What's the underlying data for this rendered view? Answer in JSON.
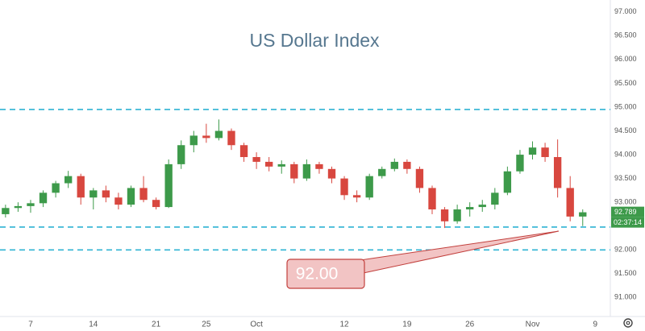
{
  "chart_data": {
    "type": "candlestick",
    "title": "US Dollar Index",
    "x": [
      -2,
      -1,
      0,
      1,
      2,
      3,
      4,
      5,
      6,
      7,
      8,
      9,
      10,
      11,
      12,
      13,
      14,
      15,
      16,
      17,
      18,
      19,
      20,
      21,
      22,
      23,
      24,
      25,
      26,
      27,
      28,
      29,
      30,
      31,
      32,
      33,
      34,
      35,
      36,
      37,
      38,
      39,
      40,
      41,
      42,
      43,
      44
    ],
    "open": [
      92.75,
      92.88,
      92.92,
      92.98,
      93.2,
      93.4,
      93.55,
      93.1,
      93.25,
      93.1,
      92.95,
      93.3,
      93.05,
      92.9,
      93.8,
      94.2,
      94.4,
      94.35,
      94.5,
      94.2,
      93.95,
      93.85,
      93.75,
      93.8,
      93.5,
      93.8,
      93.7,
      93.5,
      93.15,
      93.1,
      93.55,
      93.7,
      93.85,
      93.7,
      93.3,
      92.85,
      92.6,
      92.85,
      92.9,
      92.95,
      93.2,
      93.65,
      94.0,
      94.15,
      93.95,
      93.3,
      92.7
    ],
    "high": [
      92.95,
      93.0,
      93.05,
      93.25,
      93.45,
      93.66,
      93.6,
      93.3,
      93.35,
      93.2,
      93.35,
      93.55,
      93.1,
      93.9,
      94.3,
      94.5,
      94.65,
      94.74,
      94.55,
      94.25,
      94.05,
      93.95,
      93.88,
      93.85,
      93.9,
      93.85,
      93.75,
      93.55,
      93.25,
      93.6,
      93.75,
      93.92,
      93.9,
      93.75,
      93.35,
      92.9,
      92.95,
      93.0,
      93.05,
      93.3,
      93.75,
      94.1,
      94.28,
      94.25,
      94.32,
      93.55,
      92.85
    ],
    "low": [
      92.68,
      92.8,
      92.78,
      92.9,
      93.1,
      93.3,
      92.95,
      92.85,
      93.0,
      92.85,
      92.9,
      93.0,
      92.85,
      92.88,
      93.7,
      94.05,
      94.25,
      94.3,
      94.1,
      93.85,
      93.7,
      93.65,
      93.6,
      93.4,
      93.45,
      93.6,
      93.4,
      93.05,
      93.0,
      93.05,
      93.5,
      93.65,
      93.6,
      93.2,
      92.75,
      92.46,
      92.55,
      92.7,
      92.8,
      92.85,
      93.15,
      93.6,
      93.9,
      93.85,
      93.1,
      92.6,
      92.5
    ],
    "close": [
      92.88,
      92.92,
      92.98,
      93.2,
      93.4,
      93.55,
      93.1,
      93.25,
      93.1,
      92.95,
      93.3,
      93.05,
      92.9,
      93.8,
      94.2,
      94.4,
      94.35,
      94.5,
      94.2,
      93.95,
      93.85,
      93.75,
      93.8,
      93.5,
      93.8,
      93.7,
      93.5,
      93.15,
      93.1,
      93.55,
      93.7,
      93.85,
      93.7,
      93.3,
      92.85,
      92.6,
      92.85,
      92.9,
      92.95,
      93.2,
      93.65,
      94.0,
      94.15,
      93.95,
      93.3,
      92.7,
      92.79
    ],
    "up_color": "#3d9a4a",
    "down_color": "#d8473f",
    "xlim": [
      -2.44,
      46.2
    ],
    "xticks": [
      {
        "value": 0,
        "label": "7"
      },
      {
        "value": 5,
        "label": "14"
      },
      {
        "value": 10,
        "label": "21"
      },
      {
        "value": 14,
        "label": "25"
      },
      {
        "value": 18,
        "label": "Oct"
      },
      {
        "value": 25,
        "label": "12"
      },
      {
        "value": 30,
        "label": "19"
      },
      {
        "value": 35,
        "label": "26"
      },
      {
        "value": 40,
        "label": "Nov"
      },
      {
        "value": 45,
        "label": "9"
      }
    ],
    "ylim": [
      90.6,
      97.25
    ],
    "yticks": [
      {
        "value": 91,
        "label": "91.000"
      },
      {
        "value": 91.5,
        "label": "91.500"
      },
      {
        "value": 92,
        "label": "92.000"
      },
      {
        "value": 93,
        "label": "93.000"
      },
      {
        "value": 93.5,
        "label": "93.500"
      },
      {
        "value": 94,
        "label": "94.000"
      },
      {
        "value": 94.5,
        "label": "94.500"
      },
      {
        "value": 95,
        "label": "95.000"
      },
      {
        "value": 95.5,
        "label": "95.500"
      },
      {
        "value": 96,
        "label": "96.000"
      },
      {
        "value": 96.5,
        "label": "96.500"
      },
      {
        "value": 97,
        "label": "97.000"
      }
    ],
    "levels": [
      94.95,
      92.48,
      92.0
    ],
    "level_color": "#2fb3d3",
    "last_price": {
      "value": 92.789,
      "label": "92.789"
    },
    "countdown": "02:37:14",
    "annotation": "92.00"
  }
}
